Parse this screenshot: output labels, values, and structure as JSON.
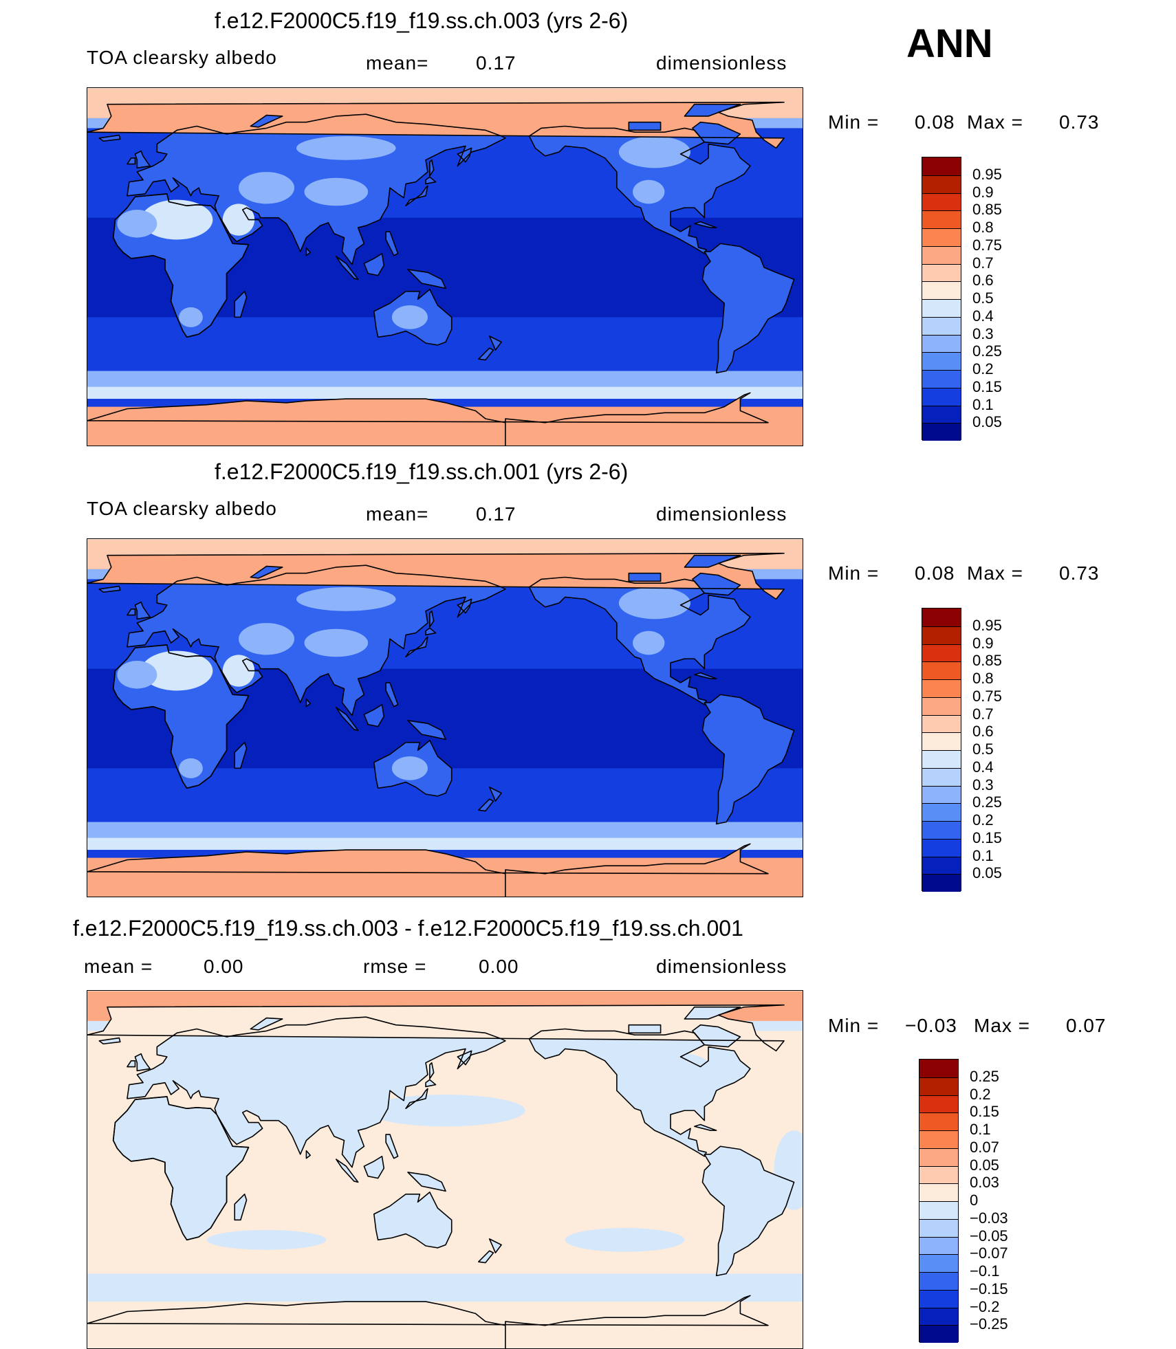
{
  "season_label": "ANN",
  "panels": [
    {
      "title": "f.e12.F2000C5.f19_f19.ss.ch.003 (yrs 2-6)",
      "var_label": "TOA clearsky albedo",
      "stat1_label": "mean=",
      "stat1_value": "0.17",
      "units": "dimensionless",
      "min_label": "Min =",
      "min_value": "0.08",
      "max_label": "Max =",
      "max_value": "0.73",
      "colorbar": {
        "labels": [
          "0.95",
          "0.9",
          "0.85",
          "0.8",
          "0.75",
          "0.7",
          "0.6",
          "0.5",
          "0.4",
          "0.3",
          "0.25",
          "0.2",
          "0.15",
          "0.1",
          "0.05"
        ],
        "colors": [
          "#8b0000",
          "#b22000",
          "#d93010",
          "#ef5a24",
          "#fc8450",
          "#fca882",
          "#fdcbb0",
          "#fdebdc",
          "#d5e8fb",
          "#b4d2fb",
          "#8db4fb",
          "#5a8ef7",
          "#3264f0",
          "#143ee0",
          "#0620bc",
          "#000a8c"
        ]
      },
      "map_palette": {
        "ocean_deep": "#0620bc",
        "ocean": "#143ee0",
        "land": "#3264f0",
        "land_bright": "#8db4fb",
        "desert": "#d5e8fb",
        "ice": "#fca882",
        "arctic": "#fdcbb0",
        "band": "#8db4fb"
      }
    },
    {
      "title": "f.e12.F2000C5.f19_f19.ss.ch.001 (yrs 2-6)",
      "var_label": "TOA clearsky albedo",
      "stat1_label": "mean=",
      "stat1_value": "0.17",
      "units": "dimensionless",
      "min_label": "Min =",
      "min_value": "0.08",
      "max_label": "Max =",
      "max_value": "0.73",
      "colorbar": {
        "labels": [
          "0.95",
          "0.9",
          "0.85",
          "0.8",
          "0.75",
          "0.7",
          "0.6",
          "0.5",
          "0.4",
          "0.3",
          "0.25",
          "0.2",
          "0.15",
          "0.1",
          "0.05"
        ],
        "colors": [
          "#8b0000",
          "#b22000",
          "#d93010",
          "#ef5a24",
          "#fc8450",
          "#fca882",
          "#fdcbb0",
          "#fdebdc",
          "#d5e8fb",
          "#b4d2fb",
          "#8db4fb",
          "#5a8ef7",
          "#3264f0",
          "#143ee0",
          "#0620bc",
          "#000a8c"
        ]
      },
      "map_palette": {
        "ocean_deep": "#0620bc",
        "ocean": "#143ee0",
        "land": "#3264f0",
        "land_bright": "#8db4fb",
        "desert": "#d5e8fb",
        "ice": "#fca882",
        "arctic": "#fdcbb0",
        "band": "#8db4fb"
      }
    },
    {
      "title": "f.e12.F2000C5.f19_f19.ss.ch.003 - f.e12.F2000C5.f19_f19.ss.ch.001",
      "stat1_label": "mean =",
      "stat1_value": "0.00",
      "stat2_label": "rmse =",
      "stat2_value": "0.00",
      "units": "dimensionless",
      "min_label": "Min =",
      "min_value": "−0.03",
      "max_label": "Max =",
      "max_value": "0.07",
      "colorbar": {
        "labels": [
          "0.25",
          "0.2",
          "0.15",
          "0.1",
          "0.07",
          "0.05",
          "0.03",
          "0",
          "−0.03",
          "−0.05",
          "−0.07",
          "−0.1",
          "−0.15",
          "−0.2",
          "−0.25"
        ],
        "colors": [
          "#8b0000",
          "#b22000",
          "#d93010",
          "#ef5a24",
          "#fc8450",
          "#fca882",
          "#fdcbb0",
          "#fdebdc",
          "#d5e8fb",
          "#b4d2fb",
          "#8db4fb",
          "#5a8ef7",
          "#3264f0",
          "#143ee0",
          "#0620bc",
          "#000a8c"
        ]
      },
      "map_palette": {
        "ocean_deep": "#fdebdc",
        "ocean": "#fdebdc",
        "land": "#d5e8fb",
        "land_bright": "#d5e8fb",
        "desert": "#fdebdc",
        "ice": "#fdebdc",
        "arctic": "#fca882",
        "band": "#d5e8fb"
      }
    }
  ]
}
